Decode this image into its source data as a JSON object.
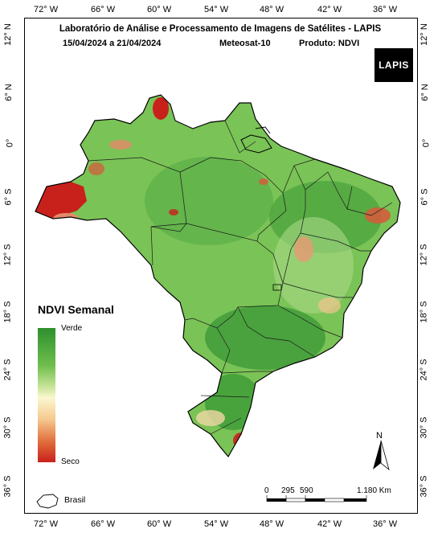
{
  "header": {
    "title": "Laboratório de Análise e Processamento de Imagens de Satélites - LAPIS",
    "date_range": "15/04/2024  a  21/04/2024",
    "satellite": "Meteosat-10",
    "product": "Produto: NDVI"
  },
  "logo": {
    "text": "LAPIS"
  },
  "axes": {
    "longitude_labels": [
      "72° W",
      "66° W",
      "60° W",
      "54° W",
      "48° W",
      "42° W",
      "36° W"
    ],
    "latitude_labels": [
      "12° N",
      "6° N",
      "0°",
      "6° S",
      "12° S",
      "18° S",
      "24° S",
      "30° S",
      "36° S"
    ]
  },
  "legend": {
    "title": "NDVI Semanal",
    "high_label": "Verde",
    "low_label": "Seco",
    "colors": [
      "#2d8f2d",
      "#6fbe4d",
      "#cfe6a0",
      "#fbf7cf",
      "#f5c98f",
      "#e06b3a",
      "#c8211c"
    ],
    "boundary_label": "Brasil"
  },
  "north_arrow": {
    "label": "N"
  },
  "scale_bar": {
    "labels": [
      "0",
      "295",
      "590",
      "1.180 Km"
    ]
  }
}
